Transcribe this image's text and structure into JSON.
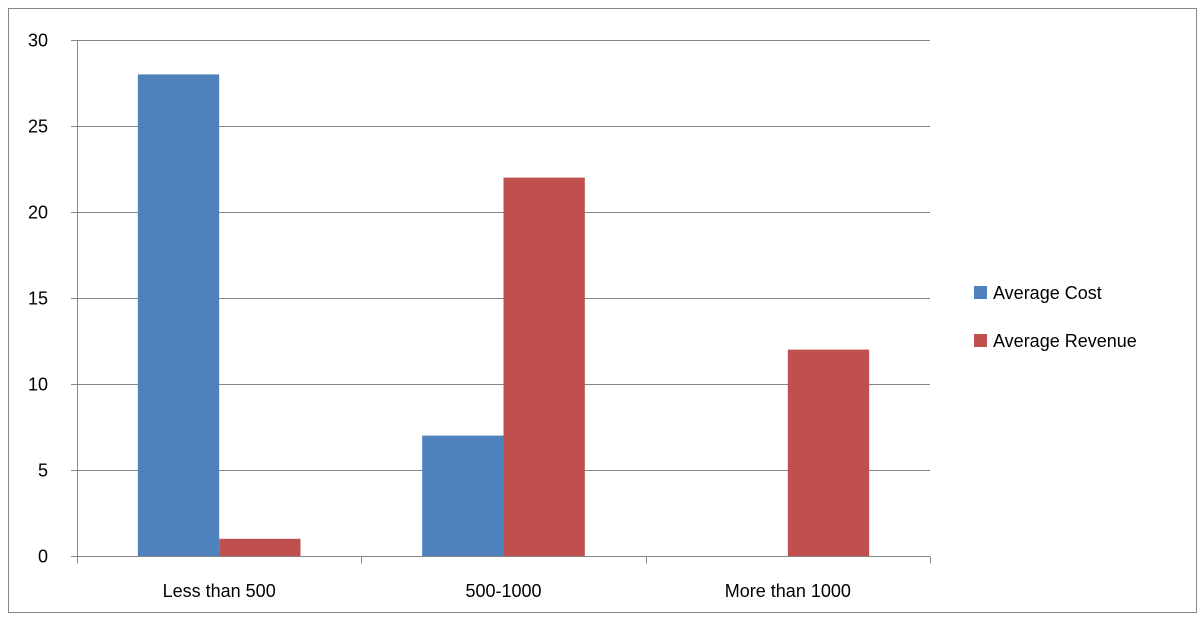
{
  "chart_data": {
    "type": "bar",
    "title": "",
    "xlabel": "",
    "ylabel": "",
    "categories": [
      "Less than 500",
      "500-1000",
      "More than 1000"
    ],
    "series": [
      {
        "name": "Average Cost",
        "values": [
          28,
          7,
          0
        ],
        "color": "#4F81BD"
      },
      {
        "name": "Average Revenue",
        "values": [
          1,
          22,
          12
        ],
        "color": "#C0504D"
      }
    ],
    "ylim": [
      0,
      30
    ],
    "yticks": [
      0,
      5,
      10,
      15,
      20,
      25,
      30
    ],
    "grid": true,
    "legend_position": "right",
    "colors": {
      "gridline": "#868686",
      "axis": "#868686",
      "border": "#868686"
    }
  }
}
